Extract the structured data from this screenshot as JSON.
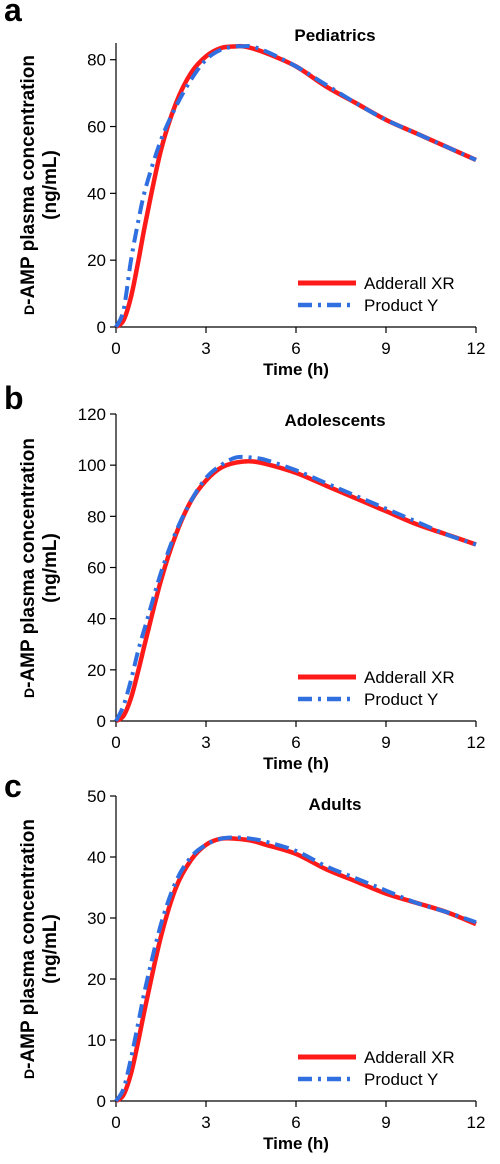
{
  "chart_data": [
    {
      "type": "line",
      "panel_label": "a",
      "title": "Pediatrics",
      "xlabel": "Time (h)",
      "ylabel_smallcaps": "D",
      "ylabel_rest": "-AMP plasma concentration",
      "ylabel_line2": "(ng/mL)",
      "xlim": [
        0,
        12
      ],
      "ylim": [
        0,
        85
      ],
      "xticks": [
        0,
        3,
        6,
        9,
        12
      ],
      "yticks": [
        0,
        20,
        40,
        60,
        80
      ],
      "legend_position": "bottom-right",
      "grid": false,
      "series": [
        {
          "name": "Adderall XR",
          "color": "#ff1a1a",
          "style": "solid",
          "x": [
            0,
            0.25,
            0.5,
            0.75,
            1,
            1.5,
            2,
            2.5,
            3,
            3.5,
            4,
            4.25,
            4.5,
            5,
            6,
            7,
            8,
            9,
            10,
            11,
            12
          ],
          "y": [
            0,
            2,
            9,
            20,
            32,
            53,
            67,
            76,
            81,
            83.5,
            84,
            84,
            83.5,
            82,
            78,
            72,
            67,
            62,
            58,
            54,
            50
          ]
        },
        {
          "name": "Product Y",
          "color": "#2f6fe0",
          "style": "dashdot",
          "x": [
            0,
            0.25,
            0.5,
            0.75,
            1,
            1.5,
            2,
            2.5,
            3,
            3.5,
            4,
            4.25,
            4.5,
            5,
            6,
            7,
            8,
            9,
            10,
            11,
            12
          ],
          "y": [
            0,
            5,
            20,
            32,
            42,
            56,
            66,
            74,
            80,
            83,
            84,
            84,
            84,
            82.5,
            78,
            72.5,
            67,
            62,
            58,
            54,
            50
          ]
        }
      ]
    },
    {
      "type": "line",
      "panel_label": "b",
      "title": "Adolescents",
      "xlabel": "Time (h)",
      "ylabel_smallcaps": "D",
      "ylabel_rest": "-AMP plasma concentration",
      "ylabel_line2": "(ng/mL)",
      "xlim": [
        0,
        12
      ],
      "ylim": [
        0,
        120
      ],
      "xticks": [
        0,
        3,
        6,
        9,
        12
      ],
      "yticks": [
        0,
        20,
        40,
        60,
        80,
        100,
        120
      ],
      "legend_position": "bottom-right",
      "grid": false,
      "series": [
        {
          "name": "Adderall XR",
          "color": "#ff1a1a",
          "style": "solid",
          "x": [
            0,
            0.25,
            0.5,
            0.75,
            1,
            1.5,
            2,
            2.5,
            3,
            3.5,
            4,
            4.5,
            5,
            6,
            7,
            8,
            9,
            10,
            11,
            12
          ],
          "y": [
            0,
            2,
            9,
            20,
            32,
            55,
            73,
            86,
            94,
            99,
            101,
            101.5,
            100.5,
            97,
            92,
            87,
            82,
            77,
            73,
            69
          ]
        },
        {
          "name": "Product Y",
          "color": "#2f6fe0",
          "style": "dashdot",
          "x": [
            0,
            0.25,
            0.5,
            0.75,
            1,
            1.5,
            2,
            2.5,
            3,
            3.5,
            4,
            4.5,
            5,
            6,
            7,
            8,
            9,
            10,
            11,
            12
          ],
          "y": [
            0,
            6,
            16,
            28,
            38,
            58,
            74,
            86,
            95,
            100,
            103,
            103,
            102,
            98,
            93,
            88,
            83,
            78,
            73,
            69
          ]
        }
      ]
    },
    {
      "type": "line",
      "panel_label": "c",
      "title": "Adults",
      "xlabel": "Time (h)",
      "ylabel_smallcaps": "D",
      "ylabel_rest": "-AMP plasma concentration",
      "ylabel_line2": "(ng/mL)",
      "xlim": [
        0,
        12
      ],
      "ylim": [
        0,
        50
      ],
      "xticks": [
        0,
        3,
        6,
        9,
        12
      ],
      "yticks": [
        0,
        10,
        20,
        30,
        40,
        50
      ],
      "legend_position": "bottom-right",
      "grid": false,
      "series": [
        {
          "name": "Adderall XR",
          "color": "#ff1a1a",
          "style": "solid",
          "x": [
            0,
            0.25,
            0.5,
            0.75,
            1,
            1.5,
            2,
            2.5,
            3,
            3.5,
            4,
            4.5,
            5,
            6,
            7,
            8,
            9,
            10,
            11,
            12
          ],
          "y": [
            0,
            1,
            4.5,
            10,
            16,
            27,
            35,
            39.5,
            42,
            43,
            43,
            42.7,
            42,
            40.5,
            38,
            36,
            34,
            32.5,
            31,
            29
          ]
        },
        {
          "name": "Product Y",
          "color": "#2f6fe0",
          "style": "dashdot",
          "x": [
            0,
            0.25,
            0.5,
            0.75,
            1,
            1.5,
            2,
            2.5,
            3,
            3.5,
            4,
            4.5,
            5,
            6,
            7,
            8,
            9,
            10,
            11,
            12
          ],
          "y": [
            0,
            2,
            7,
            13,
            19,
            29,
            36,
            40,
            42,
            43,
            43.2,
            43,
            42.5,
            41,
            38.5,
            36.5,
            34.5,
            32.5,
            31,
            29.3
          ]
        }
      ]
    }
  ]
}
